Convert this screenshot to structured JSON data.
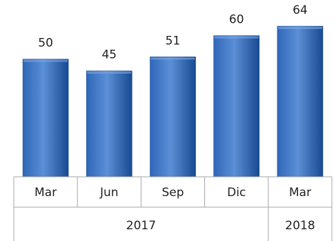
{
  "chart_data": {
    "type": "bar",
    "categories": [
      "Mar",
      "Jun",
      "Sep",
      "Dic",
      "Mar"
    ],
    "groups": [
      {
        "label": "2017",
        "span": 4
      },
      {
        "label": "2018",
        "span": 1
      }
    ],
    "series": [
      {
        "values": [
          50,
          45,
          51,
          60,
          64
        ]
      }
    ],
    "data_labels": [
      "50",
      "45",
      "51",
      "60",
      "64"
    ],
    "ylim": [
      0,
      67
    ],
    "grid": false,
    "legend": "none",
    "colors": {
      "bar_light": "#5b8fd6",
      "bar_mid": "#2f67b9",
      "bar_dark": "#174a91",
      "axis": "#a6a6a6"
    }
  }
}
